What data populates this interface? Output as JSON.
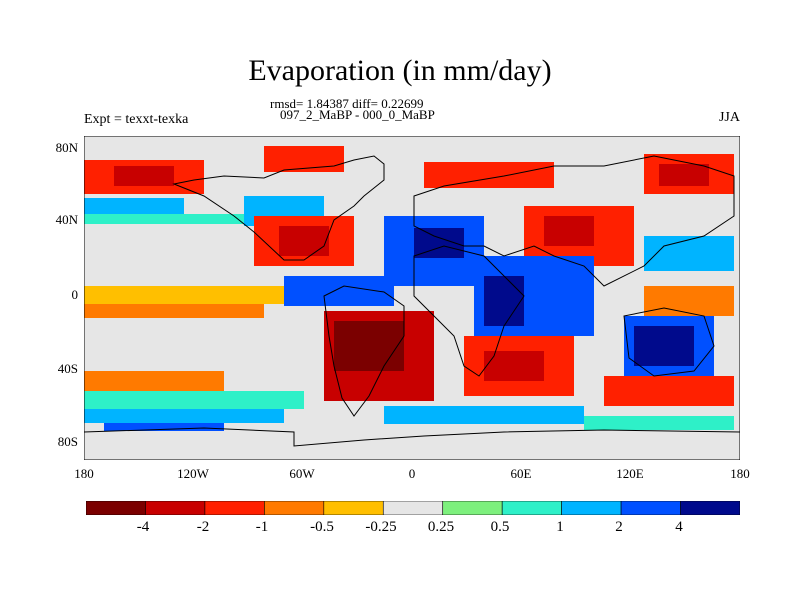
{
  "title": "Evaporation (in mm/day)",
  "stats": "rmsd= 1.84387 diff= 0.22699",
  "period": "097_2_MaBP - 000_0_MaBP",
  "experiment": "Expt = texxt-texka",
  "season": "JJA",
  "y_ticks": [
    "80N",
    "40N",
    "0",
    "40S",
    "80S"
  ],
  "x_ticks": [
    "180",
    "120W",
    "60W",
    "0",
    "60E",
    "120E",
    "180"
  ],
  "colorbar": {
    "colors": [
      "#7b0000",
      "#c80000",
      "#ff2000",
      "#ff7a00",
      "#ffbf00",
      "#e6e6e6",
      "#7df07d",
      "#2ef0c8",
      "#00b4ff",
      "#0050ff",
      "#000a8c"
    ],
    "labels": [
      "-4",
      "-2",
      "-1",
      "-0.5",
      "-0.25",
      "0.25",
      "0.5",
      "1",
      "2",
      "4"
    ]
  },
  "colors": {
    "land_outline": "#000000",
    "background_field": "#e6e6e6"
  }
}
